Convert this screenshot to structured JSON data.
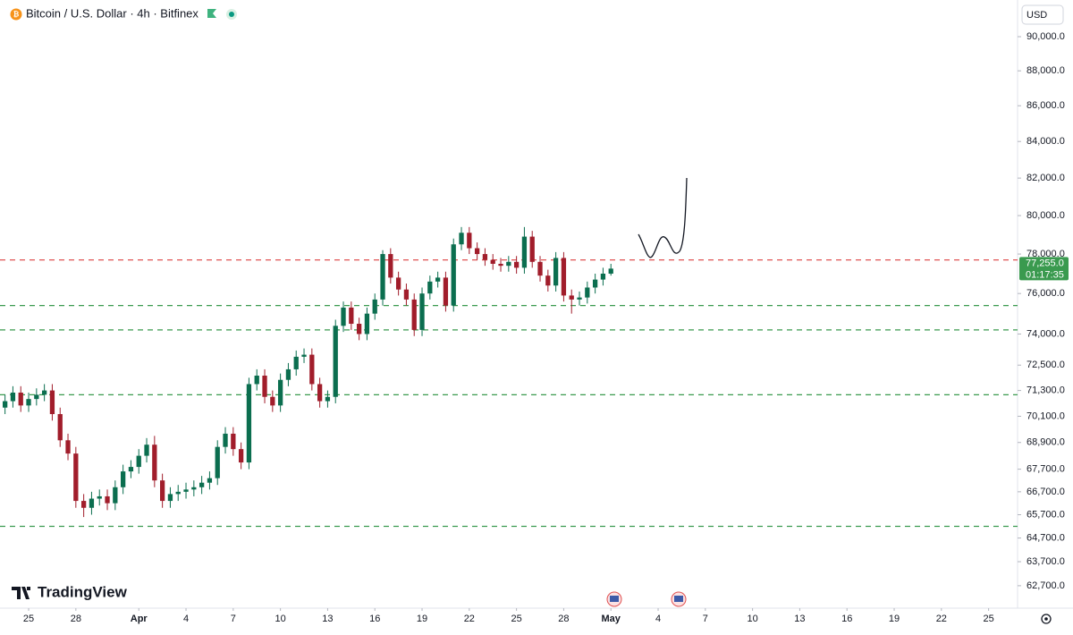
{
  "header": {
    "title": "Bitcoin / U.S. Dollar · 4h · Bitfinex",
    "currency": "USD",
    "brand": "TradingView"
  },
  "chart_data": {
    "type": "candlestick",
    "log_scale": true,
    "up_color": "#0b6e4f",
    "down_color": "#a11d2b",
    "last_price": {
      "value": 77255,
      "label": "77,255.0",
      "countdown": "01:17:35",
      "color": "#3a9a4f"
    },
    "levels": [
      {
        "value": 77700,
        "color": "#e05252"
      },
      {
        "value": 75400,
        "color": "#3a9a4f"
      },
      {
        "value": 74200,
        "color": "#3a9a4f"
      },
      {
        "value": 71100,
        "color": "#3a9a4f"
      },
      {
        "value": 65200,
        "color": "#3a9a4f"
      }
    ],
    "xlim": [
      23.18,
      87.84
    ],
    "ylim": [
      61780,
      92200
    ],
    "xticks": [
      25,
      28,
      {
        "value": 32,
        "label": "Apr"
      },
      {
        "value": 35,
        "label": "4"
      },
      {
        "value": 38,
        "label": "7"
      },
      {
        "value": 41,
        "label": "10"
      },
      {
        "value": 44,
        "label": "13"
      },
      {
        "value": 47,
        "label": "16"
      },
      {
        "value": 50,
        "label": "19"
      },
      {
        "value": 53,
        "label": "22"
      },
      {
        "value": 56,
        "label": "25"
      },
      {
        "value": 59,
        "label": "28"
      },
      {
        "value": 62,
        "label": "May"
      },
      {
        "value": 65,
        "label": "4"
      },
      {
        "value": 68,
        "label": "7"
      },
      {
        "value": 71,
        "label": "10"
      },
      {
        "value": 74,
        "label": "13"
      },
      {
        "value": 77,
        "label": "16"
      },
      {
        "value": 80,
        "label": "19"
      },
      {
        "value": 83,
        "label": "22"
      },
      {
        "value": 86,
        "label": "25"
      }
    ],
    "yticks": [
      {
        "value": 90000,
        "label": "90,000.0"
      },
      {
        "value": 88000,
        "label": "88,000.0"
      },
      {
        "value": 86000,
        "label": "86,000.0"
      },
      {
        "value": 84000,
        "label": "84,000.0"
      },
      {
        "value": 82000,
        "label": "82,000.0"
      },
      {
        "value": 80000,
        "label": "80,000.0"
      },
      {
        "value": 78000,
        "label": "78,000.0"
      },
      {
        "value": 76000,
        "label": "76,000.0"
      },
      {
        "value": 74000,
        "label": "74,000.0"
      },
      {
        "value": 72500,
        "label": "72,500.0"
      },
      {
        "value": 71300,
        "label": "71,300.0"
      },
      {
        "value": 70100,
        "label": "70,100.0"
      },
      {
        "value": 68900,
        "label": "68,900.0"
      },
      {
        "value": 67700,
        "label": "67,700.0"
      },
      {
        "value": 66700,
        "label": "66,700.0"
      },
      {
        "value": 65700,
        "label": "65,700.0"
      },
      {
        "value": 64700,
        "label": "64,700.0"
      },
      {
        "value": 63700,
        "label": "63,700.0"
      },
      {
        "value": 62700,
        "label": "62,700.0"
      }
    ],
    "x": [
      23.5,
      24,
      24.5,
      25,
      25.5,
      26,
      26.5,
      27,
      27.5,
      28,
      28.5,
      29,
      29.5,
      30,
      30.5,
      31,
      31.5,
      32,
      32.5,
      33,
      33.5,
      34,
      34.5,
      35,
      35.5,
      36,
      36.5,
      37,
      37.5,
      38,
      38.5,
      39,
      39.5,
      40,
      40.5,
      41,
      41.5,
      42,
      42.5,
      43,
      43.5,
      44,
      44.5,
      45,
      45.5,
      46,
      46.5,
      47,
      47.5,
      48,
      48.5,
      49,
      49.5,
      50,
      50.5,
      51,
      51.5,
      52,
      52.5,
      53,
      53.5,
      54,
      54.5,
      55,
      55.5,
      56,
      56.5,
      57,
      57.5,
      58,
      58.5,
      59,
      59.5,
      60,
      60.5,
      61,
      61.5,
      62
    ],
    "open": [
      70500,
      70800,
      71200,
      70600,
      70900,
      71100,
      71300,
      70200,
      69000,
      68400,
      66300,
      66000,
      66400,
      66500,
      66200,
      66900,
      67600,
      67800,
      68300,
      68800,
      67200,
      66300,
      66600,
      66700,
      66800,
      66900,
      67100,
      67300,
      68700,
      69300,
      68600,
      68000,
      71600,
      72000,
      71000,
      70600,
      71800,
      72300,
      72900,
      73000,
      71600,
      70800,
      71000,
      74400,
      75300,
      74500,
      74000,
      75000,
      75700,
      78000,
      76800,
      76200,
      75700,
      74200,
      76000,
      76600,
      76800,
      75400,
      78500,
      79100,
      78300,
      78000,
      77700,
      77500,
      77400,
      77600,
      77300,
      78900,
      77600,
      76900,
      76400,
      77800,
      75900,
      75700,
      75800,
      76300,
      76700,
      77000
    ],
    "high": [
      71100,
      71500,
      71500,
      71200,
      71400,
      71600,
      71600,
      70500,
      69300,
      68700,
      66600,
      66700,
      66800,
      66800,
      67200,
      67900,
      68100,
      68600,
      69100,
      69200,
      67500,
      66900,
      67000,
      67100,
      67200,
      67400,
      67600,
      69000,
      69600,
      69600,
      68900,
      71900,
      72300,
      72300,
      71300,
      72100,
      72600,
      73200,
      73300,
      73300,
      71900,
      71300,
      74700,
      75600,
      75600,
      74800,
      75300,
      76000,
      78200,
      78300,
      77100,
      76500,
      76000,
      76300,
      76900,
      77100,
      77100,
      78800,
      79400,
      79400,
      78600,
      78300,
      78000,
      77800,
      77900,
      77900,
      79400,
      79200,
      77900,
      77200,
      78100,
      78100,
      76200,
      76100,
      76600,
      77000,
      77300,
      77500
    ],
    "low": [
      70200,
      70500,
      70300,
      70300,
      70600,
      70800,
      69900,
      68700,
      68100,
      66000,
      65600,
      65700,
      66100,
      65900,
      65900,
      66600,
      67300,
      67500,
      68000,
      66900,
      66000,
      66000,
      66300,
      66400,
      66500,
      66600,
      66800,
      67000,
      68400,
      68300,
      67700,
      67700,
      71300,
      70700,
      70300,
      70300,
      71500,
      72000,
      72600,
      71300,
      70500,
      70500,
      70700,
      74100,
      74200,
      73700,
      73700,
      74700,
      75400,
      76500,
      75900,
      75400,
      73900,
      73900,
      75700,
      76300,
      75100,
      75100,
      78200,
      78000,
      77700,
      77400,
      77200,
      77100,
      77100,
      77000,
      77000,
      77300,
      76600,
      76100,
      76100,
      75600,
      75000,
      75400,
      75500,
      76000,
      76400,
      76900
    ],
    "close": [
      70800,
      71200,
      70600,
      70900,
      71100,
      71300,
      70200,
      69000,
      68400,
      66300,
      66000,
      66400,
      66500,
      66200,
      66900,
      67600,
      67800,
      68300,
      68800,
      67200,
      66300,
      66600,
      66700,
      66800,
      66900,
      67100,
      67300,
      68700,
      69300,
      68600,
      68000,
      71600,
      72000,
      71000,
      70600,
      71800,
      72300,
      72900,
      73000,
      71600,
      70800,
      71000,
      74400,
      75300,
      74500,
      74000,
      75000,
      75700,
      78000,
      76800,
      76200,
      75700,
      74200,
      76000,
      76600,
      76800,
      75400,
      78500,
      79100,
      78300,
      78000,
      77700,
      77500,
      77400,
      77600,
      77300,
      78900,
      77600,
      76900,
      76400,
      77800,
      75900,
      75700,
      75800,
      76300,
      76700,
      77000,
      77255
    ]
  }
}
